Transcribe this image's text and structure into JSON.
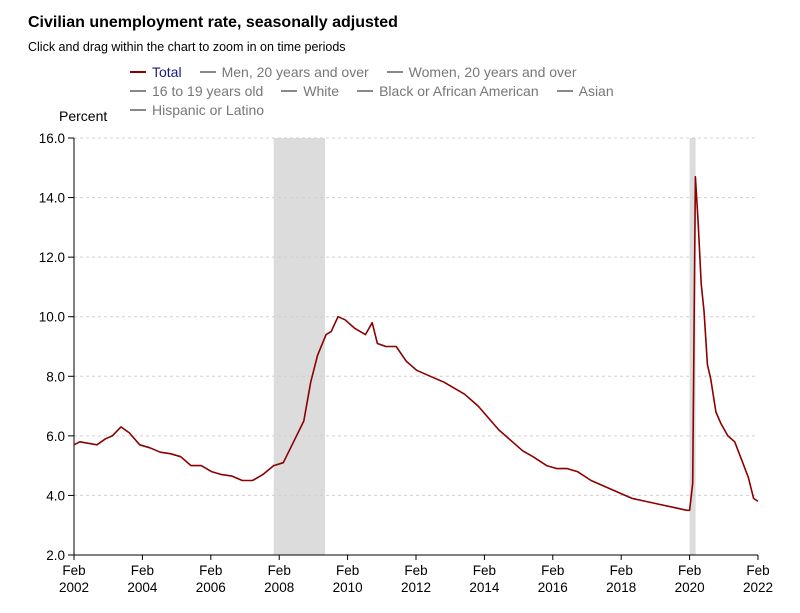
{
  "header": {
    "title": "Civilian unemployment rate, seasonally adjusted",
    "subtitle": "Click and drag within the chart to zoom in on time periods"
  },
  "legend": {
    "rows": [
      [
        {
          "label": "Total",
          "active": true
        },
        {
          "label": "Men, 20 years and over",
          "active": false
        },
        {
          "label": "Women, 20 years and over",
          "active": false
        }
      ],
      [
        {
          "label": "16 to 19 years old",
          "active": false
        },
        {
          "label": "White",
          "active": false
        },
        {
          "label": "Black or African American",
          "active": false
        },
        {
          "label": "Asian",
          "active": false
        }
      ],
      [
        {
          "label": "Hispanic or Latino",
          "active": false
        }
      ]
    ]
  },
  "chart_data": {
    "type": "line",
    "title": "Civilian unemployment rate, seasonally adjusted",
    "ylabel": "Percent",
    "xlabel": "",
    "ylim": [
      2.0,
      16.0
    ],
    "yticks": [
      "2.0",
      "4.0",
      "6.0",
      "8.0",
      "10.0",
      "12.0",
      "14.0",
      "16.0"
    ],
    "xlim": [
      2002.08,
      2022.08
    ],
    "xticks": [
      {
        "x": 2002.08,
        "line1": "Feb",
        "line2": "2002"
      },
      {
        "x": 2004.08,
        "line1": "Feb",
        "line2": "2004"
      },
      {
        "x": 2006.08,
        "line1": "Feb",
        "line2": "2006"
      },
      {
        "x": 2008.08,
        "line1": "Feb",
        "line2": "2008"
      },
      {
        "x": 2010.08,
        "line1": "Feb",
        "line2": "2010"
      },
      {
        "x": 2012.08,
        "line1": "Feb",
        "line2": "2012"
      },
      {
        "x": 2014.08,
        "line1": "Feb",
        "line2": "2014"
      },
      {
        "x": 2016.08,
        "line1": "Feb",
        "line2": "2016"
      },
      {
        "x": 2018.08,
        "line1": "Feb",
        "line2": "2018"
      },
      {
        "x": 2020.08,
        "line1": "Feb",
        "line2": "2020"
      },
      {
        "x": 2022.08,
        "line1": "Feb",
        "line2": "2022"
      }
    ],
    "grid": true,
    "recessions": [
      [
        2007.92,
        2009.42
      ],
      [
        2020.08,
        2020.25
      ]
    ],
    "series": [
      {
        "name": "Total",
        "color": "#8b0000",
        "x": [
          2002.08,
          2002.25,
          2002.5,
          2002.75,
          2003.0,
          2003.2,
          2003.45,
          2003.7,
          2004.0,
          2004.3,
          2004.6,
          2004.9,
          2005.2,
          2005.5,
          2005.8,
          2006.1,
          2006.4,
          2006.7,
          2007.0,
          2007.3,
          2007.6,
          2007.92,
          2008.2,
          2008.5,
          2008.8,
          2009.0,
          2009.2,
          2009.45,
          2009.6,
          2009.8,
          2010.0,
          2010.3,
          2010.6,
          2010.8,
          2010.95,
          2011.2,
          2011.5,
          2011.8,
          2012.1,
          2012.5,
          2012.9,
          2013.2,
          2013.5,
          2013.9,
          2014.2,
          2014.5,
          2014.9,
          2015.2,
          2015.5,
          2015.9,
          2016.2,
          2016.5,
          2016.8,
          2017.2,
          2017.6,
          2018.0,
          2018.4,
          2018.8,
          2019.2,
          2019.6,
          2020.0,
          2020.08,
          2020.17,
          2020.25,
          2020.33,
          2020.42,
          2020.5,
          2020.6,
          2020.7,
          2020.85,
          2021.0,
          2021.2,
          2021.4,
          2021.6,
          2021.8,
          2021.95,
          2022.08
        ],
        "values": [
          5.7,
          5.8,
          5.75,
          5.7,
          5.9,
          6.0,
          6.3,
          6.1,
          5.7,
          5.6,
          5.45,
          5.4,
          5.3,
          5.0,
          5.0,
          4.8,
          4.7,
          4.65,
          4.5,
          4.5,
          4.7,
          5.0,
          5.1,
          5.8,
          6.5,
          7.8,
          8.7,
          9.4,
          9.5,
          10.0,
          9.9,
          9.6,
          9.4,
          9.8,
          9.1,
          9.0,
          9.0,
          8.5,
          8.2,
          8.0,
          7.8,
          7.6,
          7.4,
          7.0,
          6.6,
          6.2,
          5.8,
          5.5,
          5.3,
          5.0,
          4.9,
          4.9,
          4.8,
          4.5,
          4.3,
          4.1,
          3.9,
          3.8,
          3.7,
          3.6,
          3.5,
          3.5,
          4.4,
          14.7,
          13.2,
          11.1,
          10.2,
          8.4,
          7.9,
          6.8,
          6.4,
          6.0,
          5.8,
          5.2,
          4.6,
          3.9,
          3.8
        ]
      }
    ]
  }
}
